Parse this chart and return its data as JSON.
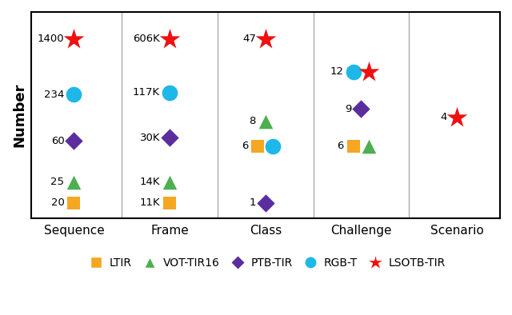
{
  "categories": [
    "Sequence",
    "Frame",
    "Class",
    "Challenge",
    "Scenario"
  ],
  "x_positions": [
    0,
    1,
    2,
    3,
    4
  ],
  "color_map": {
    "LTIR": "#F5A623",
    "VOT-TIR16": "#4CAF50",
    "PTB-TIR": "#5B2D9E",
    "RGB-T": "#1EB8E8",
    "LSOTB-TIR": "#EE1111"
  },
  "marker_map": {
    "LTIR": "s",
    "VOT-TIR16": "^",
    "PTB-TIR": "D",
    "RGB-T": "o",
    "LSOTB-TIR": "*"
  },
  "marker_sizes": {
    "LTIR": 140,
    "VOT-TIR16": 160,
    "PTB-TIR": 130,
    "RGB-T": 200,
    "LSOTB-TIR": 380
  },
  "visual_y": {
    "Sequence": {
      "LTIR": 0.075,
      "VOT-TIR16": 0.175,
      "PTB-TIR": 0.375,
      "RGB-T": 0.6,
      "LSOTB-TIR": 0.87
    },
    "Frame": {
      "LTIR": 0.075,
      "VOT-TIR16": 0.175,
      "PTB-TIR": 0.39,
      "RGB-T": 0.61,
      "LSOTB-TIR": 0.87
    },
    "Class": {
      "PTB-TIR": 0.075,
      "LTIR": 0.35,
      "RGB-T": 0.35,
      "VOT-TIR16": 0.47,
      "LSOTB-TIR": 0.87
    },
    "Challenge": {
      "LTIR": 0.35,
      "VOT-TIR16": 0.35,
      "PTB-TIR": 0.53,
      "RGB-T": 0.71,
      "LSOTB-TIR": 0.71
    },
    "Scenario": {
      "LSOTB-TIR": 0.49
    }
  },
  "x_offsets": {
    "Sequence": {
      "LTIR": 0,
      "VOT-TIR16": 0,
      "PTB-TIR": 0,
      "RGB-T": 0,
      "LSOTB-TIR": 0
    },
    "Frame": {
      "LTIR": 0,
      "VOT-TIR16": 0,
      "PTB-TIR": 0,
      "RGB-T": 0,
      "LSOTB-TIR": 0
    },
    "Class": {
      "PTB-TIR": 0,
      "LTIR": -0.08,
      "RGB-T": 0.08,
      "VOT-TIR16": 0,
      "LSOTB-TIR": 0
    },
    "Challenge": {
      "LTIR": -0.08,
      "VOT-TIR16": 0.08,
      "PTB-TIR": 0,
      "RGB-T": -0.08,
      "LSOTB-TIR": 0.08
    },
    "Scenario": {
      "LSOTB-TIR": 0
    }
  },
  "annotations": {
    "Sequence": {
      "LTIR": "20",
      "VOT-TIR16": "25",
      "PTB-TIR": "60",
      "RGB-T": "234",
      "LSOTB-TIR": "1400"
    },
    "Frame": {
      "LTIR": "11K",
      "VOT-TIR16": "14K",
      "PTB-TIR": "30K",
      "RGB-T": "117K",
      "LSOTB-TIR": "606K"
    },
    "Class": {
      "LTIR": "6",
      "VOT-TIR16": "8",
      "PTB-TIR": "1",
      "RGB-T": "6",
      "LSOTB-TIR": "47"
    },
    "Challenge": {
      "LTIR": "6",
      "VOT-TIR16": "6",
      "PTB-TIR": "9",
      "RGB-T": "12",
      "LSOTB-TIR": "12"
    },
    "Scenario": {
      "LSOTB-TIR": "4"
    }
  },
  "ann_label_show": {
    "Sequence": [
      "LTIR",
      "VOT-TIR16",
      "PTB-TIR",
      "RGB-T",
      "LSOTB-TIR"
    ],
    "Frame": [
      "LTIR",
      "VOT-TIR16",
      "PTB-TIR",
      "RGB-T",
      "LSOTB-TIR"
    ],
    "Class": [
      "PTB-TIR",
      "LTIR",
      "VOT-TIR16",
      "LSOTB-TIR"
    ],
    "Challenge": [
      "LTIR",
      "PTB-TIR",
      "RGB-T",
      "LSOTB-TIR"
    ],
    "Scenario": [
      "LSOTB-TIR"
    ]
  },
  "ylabel": "Number",
  "background_color": "#ffffff",
  "grid_color": "#aaaaaa",
  "xlim": [
    -0.45,
    4.45
  ],
  "ylim": [
    0.0,
    1.0
  ]
}
